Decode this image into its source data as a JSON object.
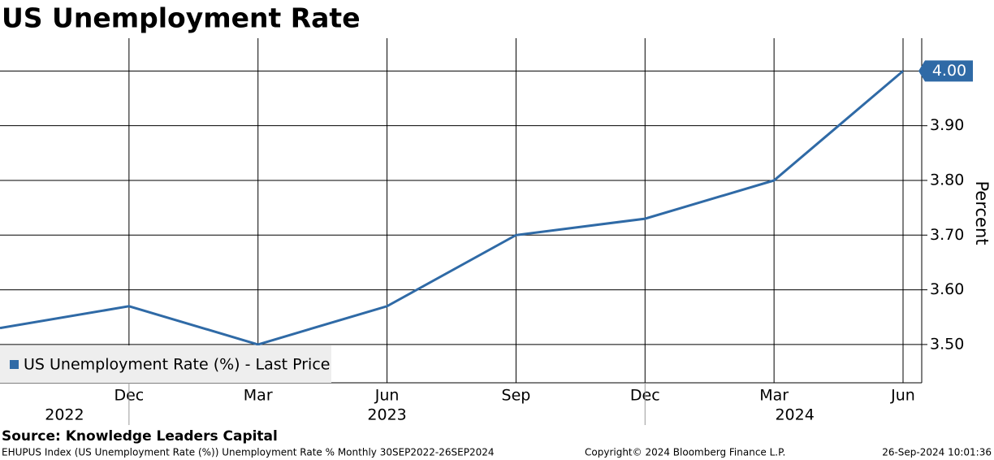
{
  "chart_data": {
    "type": "line",
    "title": "US Unemployment Rate",
    "y_label": "Percent",
    "categories": [
      null,
      "Dec",
      "Mar",
      "Jun",
      "Sep",
      "Dec",
      "Mar",
      "Jun"
    ],
    "x_years": [
      "2022",
      "2023",
      "2024"
    ],
    "series": [
      {
        "name": "US Unemployment Rate (%) - Last Price",
        "color": "#2f6aa6",
        "values": [
          3.53,
          3.57,
          3.5,
          3.57,
          3.7,
          3.73,
          3.8,
          4.0
        ],
        "value_labels": [
          null,
          null,
          null,
          null,
          null,
          null,
          null,
          "4.00"
        ]
      }
    ],
    "ylim": [
      3.43,
      4.06
    ],
    "yticks": [
      {
        "value": 3.5,
        "label": "3.50"
      },
      {
        "value": 3.6,
        "label": "3.60"
      },
      {
        "value": 3.7,
        "label": "3.70"
      },
      {
        "value": 3.8,
        "label": "3.80"
      },
      {
        "value": 3.9,
        "label": "3.90"
      },
      {
        "value": 4.0,
        "label": "4.00"
      }
    ],
    "grid": true,
    "source": "Source: Knowledge Leaders Capital",
    "footer": {
      "left": "EHUPUS Index (US Unemployment Rate (%)) Unemployment Rate %  Monthly 30SEP2022-26SEP2024",
      "center": "Copyright© 2024 Bloomberg Finance L.P.",
      "right": "26-Sep-2024 10:01:36"
    }
  }
}
